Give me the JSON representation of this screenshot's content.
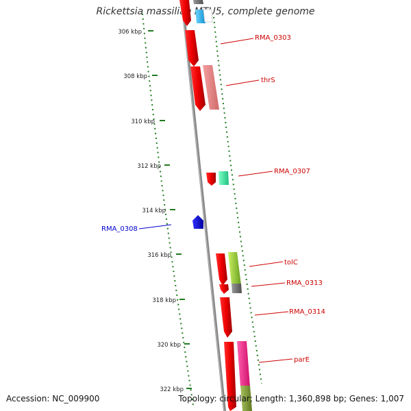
{
  "title": "Rickettsia massiliae MTU5, complete genome",
  "accession": "Accession: NC_009900",
  "summary": "Topology: circular; Length: 1,360,898 bp; Genes: 1,007",
  "colors": {
    "backbone": "#8a8a8a",
    "gc_dots": "#1f7a1f",
    "forward_label": "#cc0000",
    "reverse_label": "#0000cc"
  },
  "ticks": [
    "306 kbp",
    "308 kbp",
    "310 kbp",
    "312 kbp",
    "314 kbp",
    "316 kbp",
    "318 kbp",
    "320 kbp",
    "322 kbp"
  ],
  "gene_labels": [
    {
      "text": "RMA_0303",
      "color": "#cc0000"
    },
    {
      "text": "thrS",
      "color": "#cc0000"
    },
    {
      "text": "RMA_0307",
      "color": "#cc0000"
    },
    {
      "text": "RMA_0308",
      "color": "#0000cc"
    },
    {
      "text": "tolC",
      "color": "#cc0000"
    },
    {
      "text": "RMA_0313",
      "color": "#cc0000"
    },
    {
      "text": "RMA_0314",
      "color": "#cc0000"
    },
    {
      "text": "parE",
      "color": "#cc0000"
    }
  ]
}
